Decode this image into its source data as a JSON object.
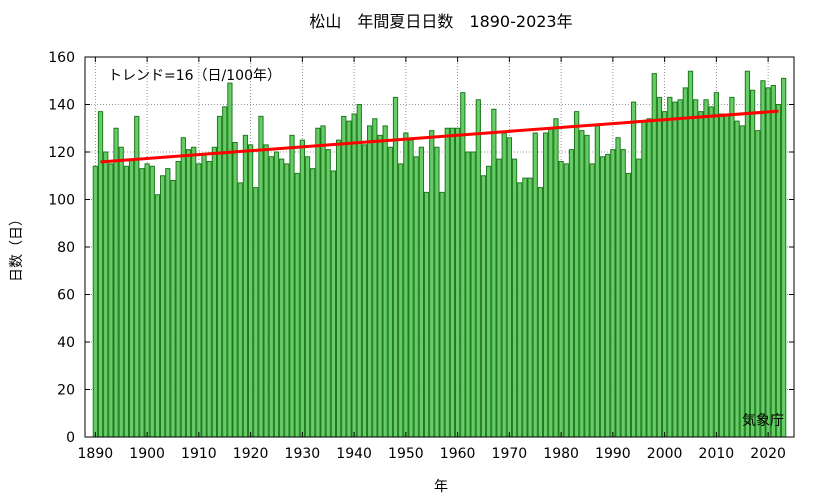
{
  "chart_data": {
    "type": "bar",
    "title": "松山　年間夏日日数　1890-2023年",
    "xlabel": "年",
    "ylabel": "日数（日）",
    "trend_label": "トレンド=16（日/100年）",
    "credit": "気象庁",
    "x_range": [
      1888,
      2025
    ],
    "ylim": [
      0,
      160
    ],
    "x_ticks": [
      1890,
      1900,
      1910,
      1920,
      1930,
      1940,
      1950,
      1960,
      1970,
      1980,
      1990,
      2000,
      2010,
      2020
    ],
    "y_ticks": [
      0,
      20,
      40,
      60,
      80,
      100,
      120,
      140,
      160
    ],
    "grid": true,
    "colors": {
      "bar_fill": "#66cc66",
      "bar_stroke": "#1f7a1f",
      "trend": "#ff0000",
      "grid": "#777777"
    },
    "start_year": 1890,
    "values": [
      114,
      137,
      120,
      115,
      130,
      122,
      114,
      117,
      135,
      113,
      115,
      114,
      102,
      110,
      113,
      108,
      116,
      126,
      121,
      122,
      115,
      119,
      116,
      122,
      135,
      139,
      149,
      124,
      107,
      127,
      123,
      105,
      135,
      123,
      118,
      120,
      117,
      115,
      127,
      111,
      125,
      118,
      113,
      130,
      131,
      121,
      112,
      125,
      135,
      133,
      136,
      140,
      123,
      131,
      134,
      127,
      131,
      122,
      143,
      115,
      128,
      125,
      118,
      122,
      103,
      129,
      122,
      103,
      130,
      130,
      130,
      145,
      120,
      120,
      142,
      110,
      114,
      138,
      117,
      128,
      126,
      117,
      107,
      109,
      109,
      128,
      105,
      128,
      130,
      134,
      116,
      115,
      121,
      137,
      129,
      127,
      115,
      131,
      118,
      119,
      121,
      126,
      121,
      111,
      141,
      117,
      133,
      134,
      153,
      143,
      137,
      143,
      141,
      142,
      147,
      154,
      142,
      137,
      142,
      139,
      145,
      136,
      136,
      143,
      133,
      131,
      154,
      146,
      129,
      150,
      147,
      148,
      140,
      151
    ],
    "trend": {
      "x0": 1891,
      "y0": 115.8,
      "x1": 2022,
      "y1": 137.2
    }
  }
}
